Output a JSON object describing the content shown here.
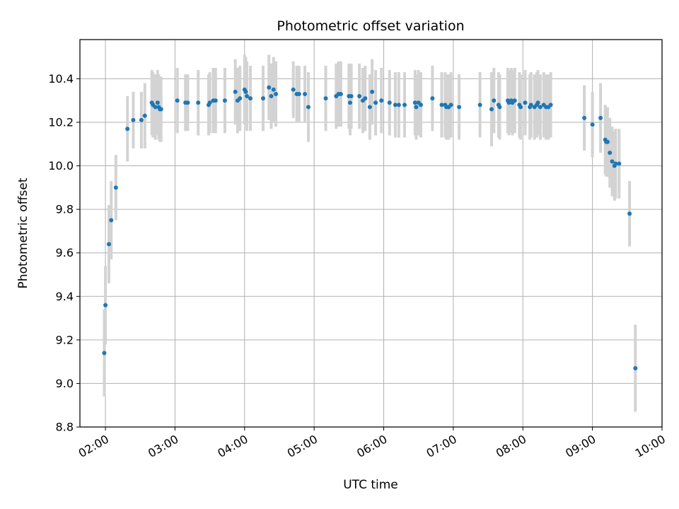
{
  "chart_data": {
    "type": "scatter",
    "title": "Photometric offset variation",
    "xlabel": "UTC time",
    "ylabel": "Photometric offset",
    "x_axis_kind": "time",
    "xlim": [
      "01:38",
      "10:00"
    ],
    "ylim": [
      8.8,
      10.58
    ],
    "grid": true,
    "xtick_labels": [
      "02:00",
      "03:00",
      "04:00",
      "05:00",
      "06:00",
      "07:00",
      "08:00",
      "09:00",
      "10:00"
    ],
    "ytick_labels": [
      "8.8",
      "9.0",
      "9.2",
      "9.4",
      "9.6",
      "9.8",
      "10.0",
      "10.2",
      "10.4"
    ],
    "colors": {
      "points": "#1f77b4",
      "errorbars": "#d3d3d3",
      "grid": "#b0b0b0"
    },
    "series": [
      {
        "x": [
          "01:59",
          "02:00",
          "02:03",
          "02:05",
          "02:09",
          "02:19",
          "02:24",
          "02:31",
          "02:34",
          "02:40",
          "02:41",
          "02:43",
          "02:45",
          "02:46",
          "02:47",
          "02:48",
          "03:02",
          "03:09",
          "03:11",
          "03:20",
          "03:29",
          "03:30",
          "03:33",
          "03:35",
          "03:43",
          "03:52",
          "03:54",
          "03:56",
          "04:00",
          "04:01",
          "04:02",
          "04:05",
          "04:16",
          "04:21",
          "04:23",
          "04:25",
          "04:27",
          "04:42",
          "04:45",
          "04:47",
          "04:52",
          "04:55",
          "05:10",
          "05:19",
          "05:21",
          "05:23",
          "05:30",
          "05:31",
          "05:32",
          "05:39",
          "05:42",
          "05:44",
          "05:48",
          "05:50",
          "05:53",
          "05:58",
          "06:05",
          "06:10",
          "06:13",
          "06:18",
          "06:27",
          "06:28",
          "06:30",
          "06:32",
          "06:42",
          "06:50",
          "06:53",
          "06:54",
          "06:56",
          "06:58",
          "07:05",
          "07:23",
          "07:33",
          "07:35",
          "07:39",
          "07:40",
          "07:47",
          "07:48",
          "07:50",
          "07:51",
          "07:53",
          "07:57",
          "07:58",
          "08:02",
          "08:06",
          "08:07",
          "08:10",
          "08:12",
          "08:13",
          "08:15",
          "08:18",
          "08:20",
          "08:22",
          "08:24",
          "08:53",
          "09:00",
          "09:07",
          "09:11",
          "09:12",
          "09:13",
          "09:15",
          "09:17",
          "09:19",
          "09:20",
          "09:23",
          "09:32",
          "09:37"
        ],
        "y": [
          9.14,
          9.36,
          9.64,
          9.75,
          9.9,
          10.17,
          10.21,
          10.21,
          10.23,
          10.29,
          10.28,
          10.27,
          10.29,
          10.27,
          10.26,
          10.26,
          10.3,
          10.29,
          10.29,
          10.29,
          10.28,
          10.29,
          10.3,
          10.3,
          10.3,
          10.34,
          10.3,
          10.31,
          10.35,
          10.34,
          10.32,
          10.31,
          10.31,
          10.36,
          10.32,
          10.35,
          10.33,
          10.35,
          10.33,
          10.33,
          10.33,
          10.27,
          10.31,
          10.32,
          10.33,
          10.33,
          10.32,
          10.29,
          10.32,
          10.32,
          10.3,
          10.31,
          10.27,
          10.34,
          10.29,
          10.3,
          10.29,
          10.28,
          10.28,
          10.28,
          10.29,
          10.27,
          10.29,
          10.28,
          10.31,
          10.28,
          10.28,
          10.27,
          10.27,
          10.28,
          10.27,
          10.28,
          10.26,
          10.3,
          10.28,
          10.27,
          10.3,
          10.29,
          10.3,
          10.29,
          10.3,
          10.28,
          10.27,
          10.29,
          10.27,
          10.28,
          10.27,
          10.28,
          10.29,
          10.27,
          10.28,
          10.27,
          10.27,
          10.28,
          10.22,
          10.19,
          10.22,
          10.12,
          10.11,
          10.11,
          10.06,
          10.02,
          10.0,
          10.01,
          10.01,
          9.78,
          9.07
        ],
        "err": [
          0.2,
          0.18,
          0.18,
          0.18,
          0.15,
          0.15,
          0.13,
          0.13,
          0.15,
          0.15,
          0.15,
          0.15,
          0.15,
          0.15,
          0.15,
          0.15,
          0.15,
          0.13,
          0.13,
          0.15,
          0.14,
          0.14,
          0.15,
          0.15,
          0.15,
          0.15,
          0.15,
          0.15,
          0.16,
          0.16,
          0.16,
          0.15,
          0.15,
          0.15,
          0.15,
          0.15,
          0.15,
          0.13,
          0.13,
          0.13,
          0.13,
          0.16,
          0.15,
          0.15,
          0.15,
          0.15,
          0.15,
          0.15,
          0.15,
          0.15,
          0.15,
          0.15,
          0.15,
          0.15,
          0.15,
          0.15,
          0.15,
          0.15,
          0.15,
          0.15,
          0.15,
          0.15,
          0.15,
          0.15,
          0.15,
          0.15,
          0.15,
          0.15,
          0.15,
          0.15,
          0.15,
          0.15,
          0.17,
          0.15,
          0.15,
          0.15,
          0.15,
          0.15,
          0.15,
          0.15,
          0.15,
          0.15,
          0.15,
          0.15,
          0.15,
          0.15,
          0.15,
          0.15,
          0.15,
          0.15,
          0.15,
          0.15,
          0.15,
          0.15,
          0.15,
          0.15,
          0.16,
          0.16,
          0.16,
          0.16,
          0.16,
          0.16,
          0.16,
          0.16,
          0.16,
          0.15,
          0.2
        ]
      }
    ]
  }
}
